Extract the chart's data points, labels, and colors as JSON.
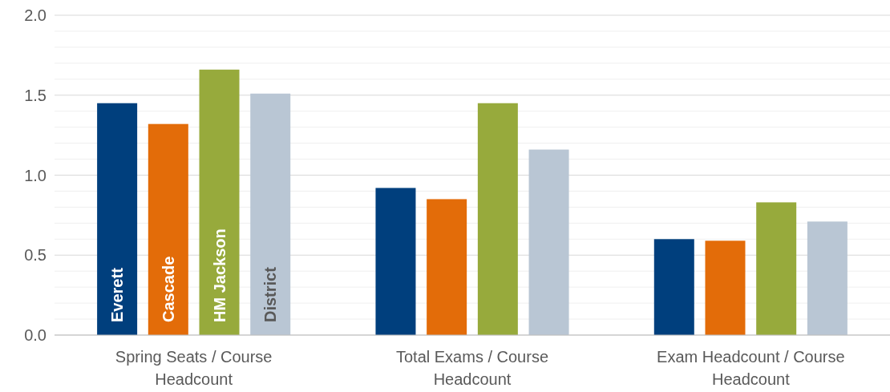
{
  "chart_data": {
    "type": "bar",
    "categories": [
      "Spring Seats / Course Headcount",
      "Total Exams / Course Headcount",
      "Exam Headcount / Course Headcount"
    ],
    "series": [
      {
        "name": "Everett",
        "color": "#003f7d",
        "values": [
          1.45,
          0.92,
          0.6
        ]
      },
      {
        "name": "Cascade",
        "color": "#e36c09",
        "values": [
          1.32,
          0.85,
          0.59
        ]
      },
      {
        "name": "HM Jackson",
        "color": "#97aa3c",
        "values": [
          1.66,
          1.45,
          0.83
        ]
      },
      {
        "name": "District",
        "color": "#b9c6d4",
        "values": [
          1.51,
          1.16,
          0.71
        ]
      }
    ],
    "ylim": [
      0,
      2
    ],
    "yticks": [
      {
        "value": 0,
        "label": "0.0"
      },
      {
        "value": 0.1,
        "label": null
      },
      {
        "value": 0.2,
        "label": null
      },
      {
        "value": 0.3,
        "label": null
      },
      {
        "value": 0.4,
        "label": null
      },
      {
        "value": 0.5,
        "label": "0.5"
      },
      {
        "value": 0.6,
        "label": null
      },
      {
        "value": 0.7,
        "label": null
      },
      {
        "value": 0.8,
        "label": null
      },
      {
        "value": 0.9,
        "label": null
      },
      {
        "value": 1,
        "label": "1.0"
      },
      {
        "value": 1.1,
        "label": null
      },
      {
        "value": 1.2,
        "label": null
      },
      {
        "value": 1.3,
        "label": null
      },
      {
        "value": 1.4,
        "label": null
      },
      {
        "value": 1.5,
        "label": "1.5"
      },
      {
        "value": 1.6,
        "label": null
      },
      {
        "value": 1.7,
        "label": null
      },
      {
        "value": 1.8,
        "label": null
      },
      {
        "value": 1.9,
        "label": null
      },
      {
        "value": 2,
        "label": "2.0"
      }
    ],
    "grid": "y",
    "legend": false
  }
}
